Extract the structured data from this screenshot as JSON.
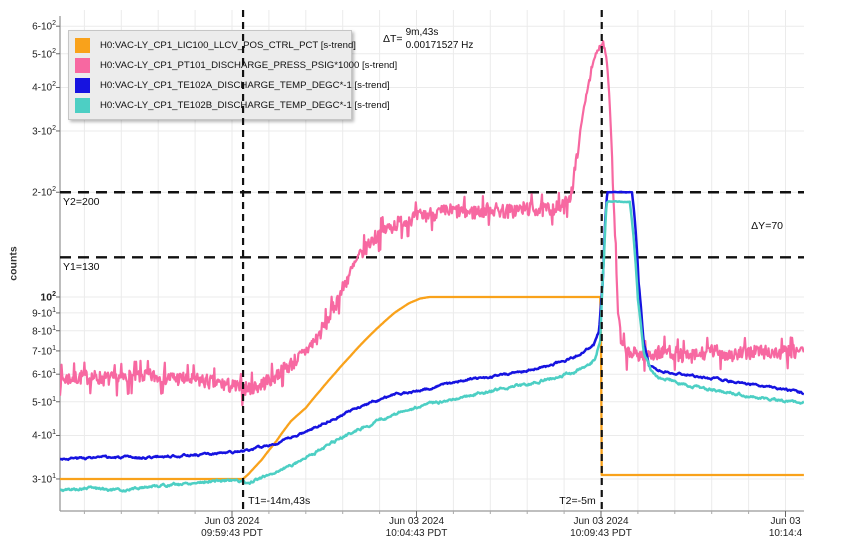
{
  "chart_data": {
    "type": "line",
    "ylabel": "counts",
    "y_axis": {
      "scale": "log",
      "range": [
        24,
        660
      ],
      "ticks": [
        {
          "v": 600,
          "m": "6-10",
          "e": "2"
        },
        {
          "v": 500,
          "m": "5-10",
          "e": "2"
        },
        {
          "v": 400,
          "m": "4-10",
          "e": "2"
        },
        {
          "v": 300,
          "m": "3-10",
          "e": "2"
        },
        {
          "v": 200,
          "m": "2-10",
          "e": "2"
        },
        {
          "v": 100,
          "m": "10",
          "e": "2",
          "bold": true
        },
        {
          "v": 90,
          "m": "9-10",
          "e": "1"
        },
        {
          "v": 80,
          "m": "8-10",
          "e": "1"
        },
        {
          "v": 70,
          "m": "7-10",
          "e": "1"
        },
        {
          "v": 60,
          "m": "6-10",
          "e": "1"
        },
        {
          "v": 50,
          "m": "5-10",
          "e": "1"
        },
        {
          "v": 40,
          "m": "4-10",
          "e": "1"
        },
        {
          "v": 30,
          "m": "3-10",
          "e": "1"
        }
      ]
    },
    "x_axis": {
      "minor_step_min": 1,
      "range_min": [
        -4.66,
        15.5
      ],
      "ticks": [
        {
          "t": 0,
          "date": "Jun 03 2024",
          "time": "09:59:43 PDT"
        },
        {
          "t": 5,
          "date": "Jun 03 2024",
          "time": "10:04:43 PDT"
        },
        {
          "t": 10,
          "date": "Jun 03 2024",
          "time": "10:09:43 PDT"
        },
        {
          "t": 15,
          "date": "Jun 03",
          "time": "10:14:4"
        }
      ]
    },
    "series": [
      {
        "name": "H0:VAC-LY_CP1_LIC100_LLCV_POS_CTRL_PCT [s-trend]",
        "color": "#F9A21B",
        "width": 2.3,
        "seed": 11,
        "noise_amp": 0,
        "noise_damp_above": 1000,
        "points": [
          [
            -4.66,
            30
          ],
          [
            0.3,
            30
          ],
          [
            0.45,
            31
          ],
          [
            0.8,
            34
          ],
          [
            1.2,
            38.5
          ],
          [
            1.6,
            44
          ],
          [
            2.0,
            48
          ],
          [
            2.4,
            54
          ],
          [
            2.8,
            60.5
          ],
          [
            3.2,
            67.5
          ],
          [
            3.6,
            75
          ],
          [
            4.0,
            82.5
          ],
          [
            4.4,
            90
          ],
          [
            4.8,
            96
          ],
          [
            5.1,
            99
          ],
          [
            5.35,
            100
          ],
          [
            9.99,
            100
          ],
          [
            10.02,
            30.8
          ],
          [
            15.5,
            30.8
          ]
        ]
      },
      {
        "name": "H0:VAC-LY_CP1_PT101_DISCHARGE_PRESS_PSIG*1000 [s-trend]",
        "color": "#F768A1",
        "width": 2.2,
        "seed": 7,
        "noise_amp": 0.05,
        "noise_damp_above": 260,
        "points": [
          [
            -4.66,
            58
          ],
          [
            -4.0,
            59
          ],
          [
            -3.2,
            58
          ],
          [
            -2.4,
            59.5
          ],
          [
            -1.6,
            58.5
          ],
          [
            -0.8,
            57.5
          ],
          [
            -0.2,
            56
          ],
          [
            0.3,
            54.5
          ],
          [
            0.7,
            55.5
          ],
          [
            1.1,
            58.5
          ],
          [
            1.5,
            63
          ],
          [
            1.9,
            68
          ],
          [
            2.3,
            76
          ],
          [
            2.6,
            86
          ],
          [
            2.9,
            100
          ],
          [
            3.2,
            117
          ],
          [
            3.5,
            133
          ],
          [
            3.8,
            146
          ],
          [
            4.1,
            155
          ],
          [
            4.5,
            163
          ],
          [
            5.0,
            170
          ],
          [
            5.5,
            174
          ],
          [
            6.0,
            177
          ],
          [
            6.5,
            175
          ],
          [
            7.0,
            179
          ],
          [
            7.5,
            176
          ],
          [
            8.0,
            180
          ],
          [
            8.5,
            178
          ],
          [
            9.0,
            182
          ],
          [
            9.2,
            200
          ],
          [
            9.35,
            250
          ],
          [
            9.5,
            330
          ],
          [
            9.7,
            430
          ],
          [
            9.85,
            495
          ],
          [
            10.0,
            532
          ],
          [
            10.07,
            540
          ],
          [
            10.17,
            468
          ],
          [
            10.33,
            200
          ],
          [
            10.45,
            92
          ],
          [
            10.55,
            73
          ],
          [
            10.7,
            69
          ],
          [
            11.2,
            68
          ],
          [
            11.8,
            70
          ],
          [
            12.4,
            67
          ],
          [
            13.0,
            70
          ],
          [
            13.6,
            68
          ],
          [
            14.2,
            70
          ],
          [
            14.8,
            69
          ],
          [
            15.5,
            70
          ]
        ]
      },
      {
        "name": "H0:VAC-LY_CP1_TE102A_DISCHARGE_TEMP_DEGC*-1 [s-trend]",
        "color": "#1613E0",
        "width": 2.5,
        "seed": 3,
        "smooth": true,
        "noise_amp": 0.012,
        "noise_damp_above": 150,
        "points": [
          [
            -4.66,
            34.3
          ],
          [
            -3.5,
            34.6
          ],
          [
            -2.5,
            34.5
          ],
          [
            -1.5,
            35
          ],
          [
            -0.5,
            35.4
          ],
          [
            0.3,
            36
          ],
          [
            0.8,
            37
          ],
          [
            1.4,
            38.6
          ],
          [
            2.0,
            41
          ],
          [
            2.6,
            44
          ],
          [
            3.2,
            47
          ],
          [
            3.8,
            50
          ],
          [
            4.4,
            52.5
          ],
          [
            5.0,
            53.5
          ],
          [
            5.6,
            55.5
          ],
          [
            6.2,
            57.5
          ],
          [
            6.8,
            58.5
          ],
          [
            7.4,
            60
          ],
          [
            8.0,
            61.5
          ],
          [
            8.6,
            63.5
          ],
          [
            9.1,
            66
          ],
          [
            9.5,
            69
          ],
          [
            9.8,
            73
          ],
          [
            9.95,
            80
          ],
          [
            10.05,
            110
          ],
          [
            10.12,
            170
          ],
          [
            10.17,
            200
          ],
          [
            10.84,
            200
          ],
          [
            10.92,
            165
          ],
          [
            11.02,
            110
          ],
          [
            11.15,
            75
          ],
          [
            11.3,
            64
          ],
          [
            11.5,
            62
          ],
          [
            12.0,
            60.5
          ],
          [
            12.7,
            59
          ],
          [
            13.4,
            57.5
          ],
          [
            14.1,
            56
          ],
          [
            14.8,
            54.5
          ],
          [
            15.5,
            53
          ]
        ]
      },
      {
        "name": "H0:VAC-LY_CP1_TE102B_DISCHARGE_TEMP_DEGC*-1 [s-trend]",
        "color": "#4DCFC4",
        "width": 2.5,
        "seed": 5,
        "smooth": true,
        "noise_amp": 0.015,
        "noise_damp_above": 150,
        "points": [
          [
            -4.66,
            27.8
          ],
          [
            -3.8,
            28.3
          ],
          [
            -3.0,
            27.8
          ],
          [
            -2.2,
            28.6
          ],
          [
            -1.4,
            29
          ],
          [
            -0.6,
            29.6
          ],
          [
            0.1,
            29.8
          ],
          [
            0.45,
            29.2
          ],
          [
            0.9,
            30.5
          ],
          [
            1.5,
            32.5
          ],
          [
            2.1,
            35
          ],
          [
            2.7,
            38
          ],
          [
            3.3,
            41
          ],
          [
            3.9,
            43.8
          ],
          [
            4.5,
            46.3
          ],
          [
            5.1,
            48.4
          ],
          [
            5.7,
            50.2
          ],
          [
            6.3,
            51.8
          ],
          [
            6.9,
            53.4
          ],
          [
            7.5,
            55
          ],
          [
            8.1,
            56.6
          ],
          [
            8.7,
            58.4
          ],
          [
            9.2,
            60.5
          ],
          [
            9.6,
            63
          ],
          [
            9.85,
            66
          ],
          [
            9.98,
            75
          ],
          [
            10.08,
            130
          ],
          [
            10.15,
            186
          ],
          [
            10.2,
            188
          ],
          [
            10.78,
            188
          ],
          [
            10.88,
            150
          ],
          [
            11.0,
            100
          ],
          [
            11.15,
            70
          ],
          [
            11.35,
            61
          ],
          [
            11.6,
            58.5
          ],
          [
            12.2,
            56.5
          ],
          [
            12.9,
            54.5
          ],
          [
            13.6,
            52.8
          ],
          [
            14.4,
            51.2
          ],
          [
            15.5,
            49.5
          ]
        ]
      }
    ],
    "markers": {
      "t1": {
        "t": 0.3,
        "label": "T1=-14m,43s"
      },
      "t2": {
        "t": 10.02,
        "label": "T2=-5m"
      },
      "y1": {
        "v": 130,
        "label": "Y1=130"
      },
      "y2": {
        "v": 200,
        "label": "Y2=200"
      },
      "delta_y": {
        "label": "ΔY=70"
      },
      "delta_t": {
        "prefix": "ΔT=",
        "duration": "9m,43s",
        "frequency": "0.00171527 Hz"
      }
    }
  }
}
